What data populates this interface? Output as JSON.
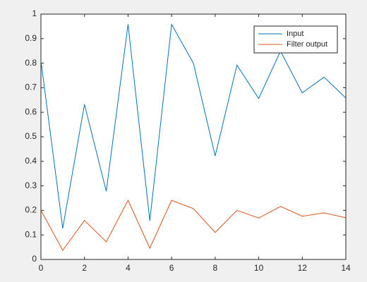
{
  "chart_data": {
    "type": "line",
    "x": [
      0,
      1,
      2,
      3,
      4,
      5,
      6,
      7,
      8,
      9,
      10,
      11,
      12,
      13,
      14
    ],
    "series": [
      {
        "name": "Input",
        "color": "#0072bd",
        "values": [
          0.81,
          0.127,
          0.632,
          0.278,
          0.958,
          0.158,
          0.958,
          0.8,
          0.422,
          0.792,
          0.656,
          0.849,
          0.679,
          0.743,
          0.658
        ]
      },
      {
        "name": "Filter output",
        "color": "#d95319",
        "values": [
          0.2,
          0.037,
          0.159,
          0.072,
          0.241,
          0.046,
          0.241,
          0.207,
          0.11,
          0.2,
          0.169,
          0.216,
          0.176,
          0.19,
          0.17
        ]
      }
    ],
    "xlim": [
      0,
      14
    ],
    "xticks": [
      0,
      2,
      4,
      6,
      8,
      10,
      12,
      14
    ],
    "ylim": [
      0,
      1
    ],
    "yticks": [
      0,
      0.1,
      0.2,
      0.3,
      0.4,
      0.5,
      0.6,
      0.7,
      0.8,
      0.9,
      1
    ],
    "grid": false,
    "legend": "northeast"
  }
}
